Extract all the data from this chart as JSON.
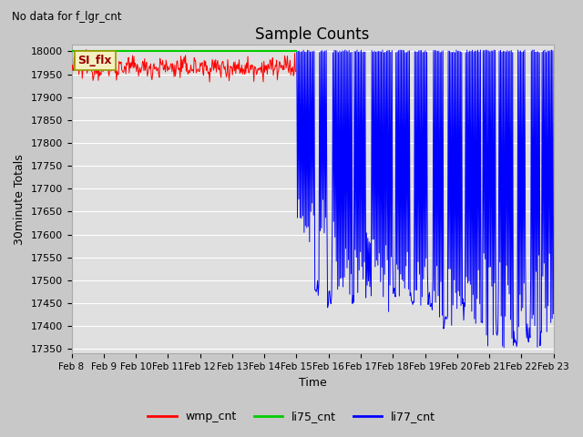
{
  "title": "Sample Counts",
  "subtitle": "No data for f_lgr_cnt",
  "ylabel": "30minute Totals",
  "xlabel": "Time",
  "annotation": "SI_flx",
  "ylim": [
    17340,
    18015
  ],
  "yticks": [
    17350,
    17400,
    17450,
    17500,
    17550,
    17600,
    17650,
    17700,
    17750,
    17800,
    17850,
    17900,
    17950,
    18000
  ],
  "xtick_labels": [
    "Feb 8",
    "Feb 9",
    "Feb 10",
    "Feb 11",
    "Feb 12",
    "Feb 13",
    "Feb 14",
    "Feb 15",
    "Feb 16",
    "Feb 17",
    "Feb 18",
    "Feb 19",
    "Feb 20",
    "Feb 21",
    "Feb 22",
    "Feb 23"
  ],
  "wmp_color": "#ff0000",
  "li75_color": "#00cc00",
  "li77_color": "#0000ff",
  "fig_bg_color": "#c8c8c8",
  "plot_bg_color": "#e0e0e0",
  "grid_color": "#ffffff",
  "legend_entries": [
    "wmp_cnt",
    "li75_cnt",
    "li77_cnt"
  ],
  "wmp_base": 17965,
  "wmp_noise": 12,
  "li75_value": 18000,
  "li77_base": 18000,
  "transition_day": 7,
  "total_days": 15
}
